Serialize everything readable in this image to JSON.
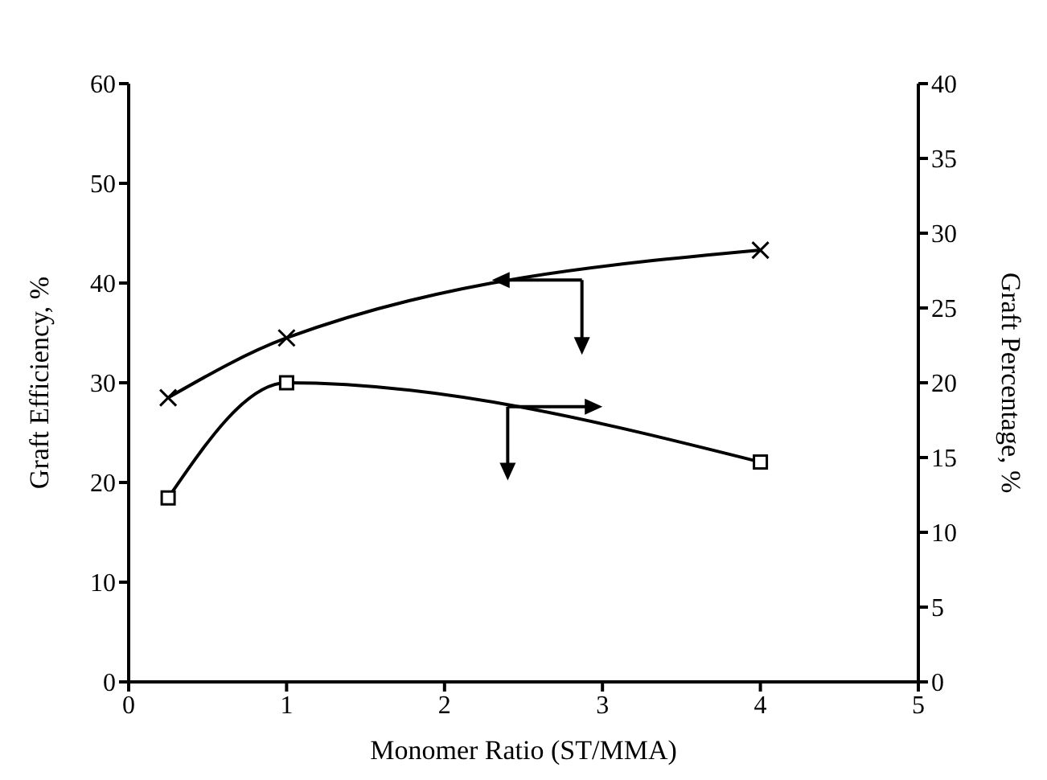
{
  "chart_data": {
    "type": "line",
    "xlabel": "Monomer Ratio (ST/MMA)",
    "ylabel": "Graft Efficiency, %",
    "y2label": "Graft Percentage, %",
    "xlim": [
      0,
      5
    ],
    "xticks": [
      0,
      1,
      2,
      3,
      4,
      5
    ],
    "ylim": [
      0,
      60
    ],
    "yticks": [
      0,
      10,
      20,
      30,
      40,
      50,
      60
    ],
    "y2lim": [
      0,
      40
    ],
    "y2ticks": [
      0,
      5,
      10,
      15,
      20,
      25,
      30,
      35,
      40
    ],
    "line_style": "solid",
    "series": [
      {
        "x": [
          0.25,
          1,
          4
        ],
        "values": [
          28.5,
          34.5,
          43.3
        ],
        "color": "#000000",
        "marker": "cross"
      },
      {
        "x": [
          0.25,
          1,
          4
        ],
        "values": [
          12.3,
          20,
          14.7
        ],
        "color": "#000000",
        "marker": "square",
        "axis": "y2"
      }
    ]
  }
}
